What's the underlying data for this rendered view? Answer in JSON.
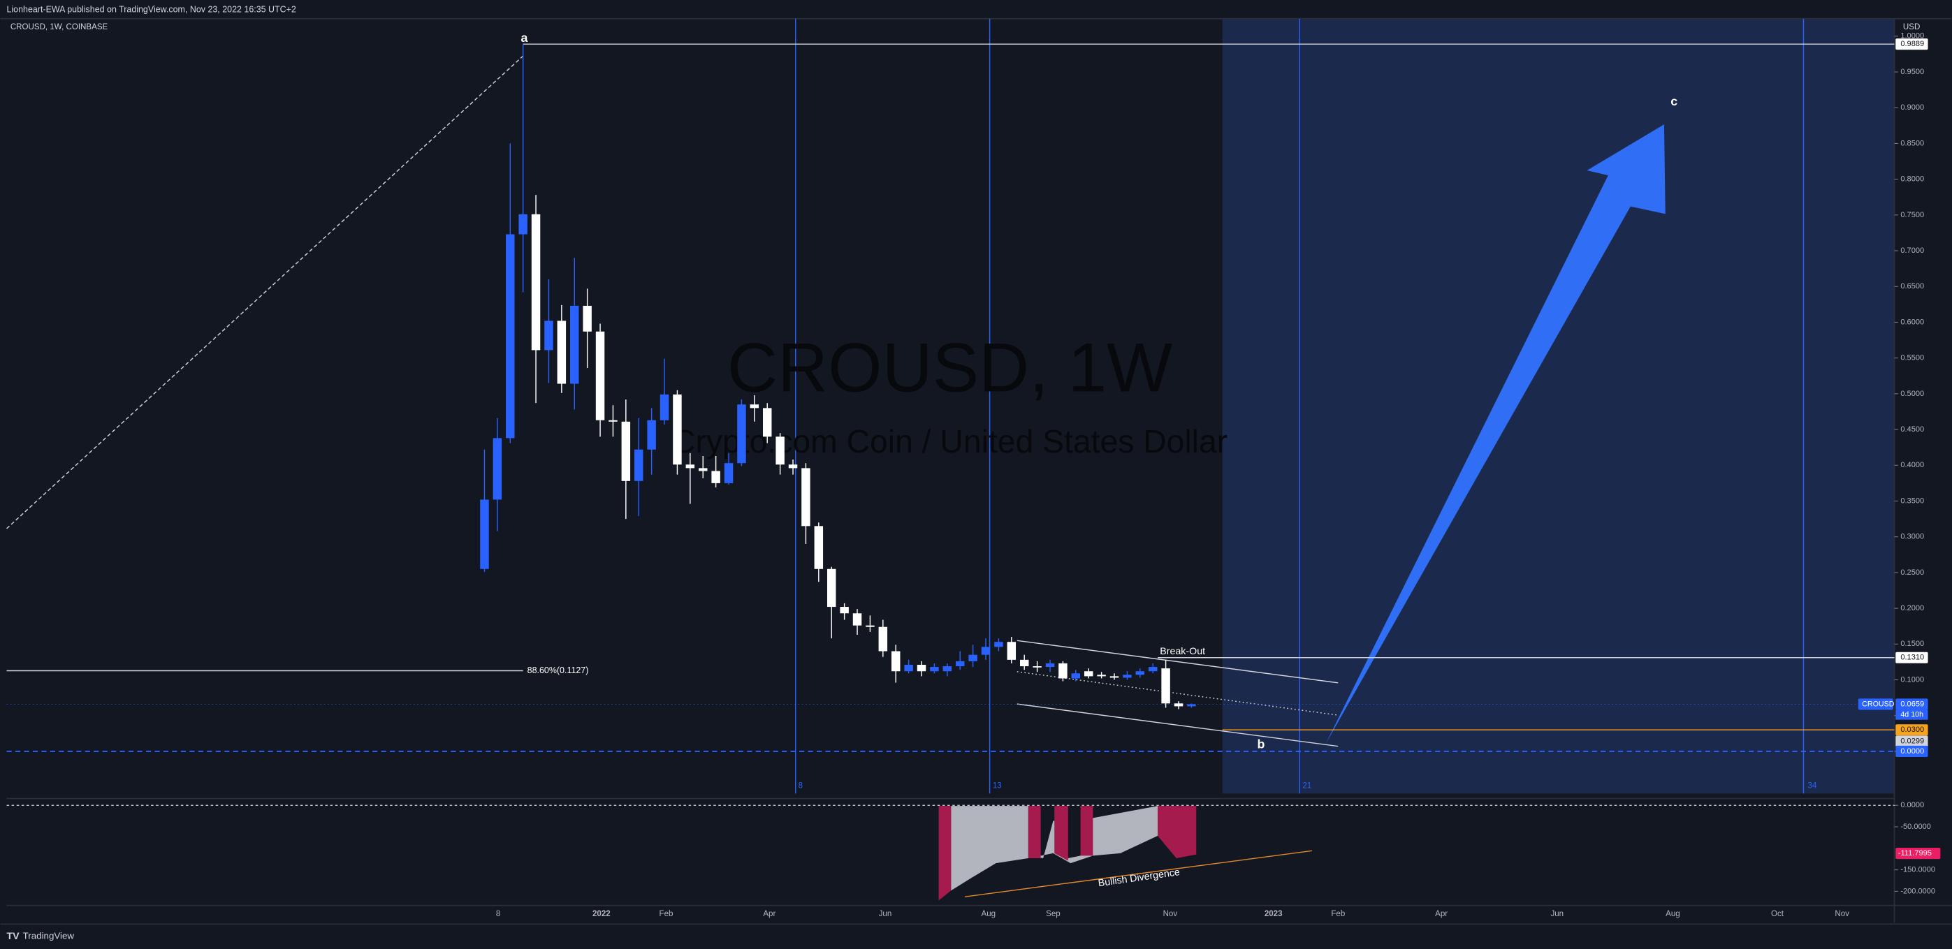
{
  "header": "Lionheart-EWA published on TradingView.com, Nov 23, 2022 16:35 UTC+2",
  "footer": "TradingView",
  "chart_data": {
    "type": "candlestick",
    "symbol": "CROUSD, 1W, COINBASE",
    "watermark": "CROUSD, 1W",
    "watermark_subtitle": "Crypto.com Coin / United States Dollar",
    "currency": "USD",
    "up_color": "#2962ff",
    "down_color": "#ffffff",
    "categories": [
      null,
      null,
      null,
      null,
      null,
      null,
      null,
      null,
      null,
      null,
      null,
      null,
      null,
      null,
      null,
      null,
      null,
      null,
      null,
      null,
      null,
      null,
      null,
      null,
      null,
      null,
      null,
      null,
      null,
      null,
      null,
      null,
      null,
      null,
      null,
      null,
      null,
      null,
      null,
      null,
      null,
      null,
      null,
      null,
      null,
      null,
      null,
      null,
      null,
      null,
      null,
      null,
      null,
      null,
      null,
      null
    ],
    "open": [
      0.255,
      0.352,
      0.438,
      0.723,
      0.751,
      0.561,
      0.602,
      0.514,
      0.623,
      0.587,
      0.463,
      0.461,
      0.378,
      0.422,
      0.463,
      0.499,
      0.401,
      0.396,
      0.392,
      0.375,
      0.403,
      0.485,
      0.48,
      0.44,
      0.401,
      0.396,
      0.315,
      0.255,
      0.202,
      0.193,
      0.176,
      0.174,
      0.14,
      0.112,
      0.121,
      0.112,
      0.112,
      0.119,
      0.126,
      0.135,
      0.146,
      0.153,
      0.128,
      0.119,
      0.118,
      0.123,
      0.102,
      0.112,
      0.107,
      0.105,
      0.103,
      0.107,
      0.112,
      0.116,
      0.067,
      0.063
    ],
    "high": [
      0.422,
      0.466,
      0.85,
      0.9889,
      0.778,
      0.66,
      0.624,
      0.69,
      0.647,
      0.598,
      0.484,
      0.492,
      0.466,
      0.48,
      0.549,
      0.505,
      0.417,
      0.413,
      0.413,
      0.417,
      0.492,
      0.498,
      0.487,
      0.445,
      0.408,
      0.403,
      0.32,
      0.258,
      0.207,
      0.199,
      0.19,
      0.184,
      0.149,
      0.128,
      0.126,
      0.123,
      0.123,
      0.14,
      0.149,
      0.158,
      0.158,
      0.16,
      0.135,
      0.126,
      0.128,
      0.126,
      0.114,
      0.116,
      0.111,
      0.109,
      0.112,
      0.116,
      0.123,
      0.128,
      0.07,
      0.067
    ],
    "low": [
      0.251,
      0.308,
      0.431,
      0.642,
      0.487,
      0.515,
      0.501,
      0.478,
      0.536,
      0.44,
      0.44,
      0.325,
      0.329,
      0.387,
      0.457,
      0.387,
      0.346,
      0.382,
      0.369,
      0.373,
      0.399,
      0.461,
      0.431,
      0.387,
      0.387,
      0.29,
      0.237,
      0.158,
      0.184,
      0.163,
      0.167,
      0.132,
      0.096,
      0.109,
      0.105,
      0.109,
      0.105,
      0.114,
      0.118,
      0.128,
      0.14,
      0.123,
      0.114,
      0.111,
      0.111,
      0.098,
      0.098,
      0.102,
      0.102,
      0.1,
      0.1,
      0.103,
      0.109,
      0.061,
      0.059,
      0.061
    ],
    "close": [
      0.352,
      0.438,
      0.723,
      0.751,
      0.561,
      0.602,
      0.514,
      0.623,
      0.587,
      0.463,
      0.461,
      0.378,
      0.422,
      0.463,
      0.499,
      0.401,
      0.396,
      0.392,
      0.375,
      0.403,
      0.485,
      0.48,
      0.44,
      0.401,
      0.396,
      0.315,
      0.255,
      0.202,
      0.193,
      0.176,
      0.174,
      0.14,
      0.112,
      0.121,
      0.112,
      0.118,
      0.119,
      0.126,
      0.135,
      0.146,
      0.153,
      0.128,
      0.119,
      0.118,
      0.123,
      0.102,
      0.109,
      0.105,
      0.105,
      0.103,
      0.107,
      0.112,
      0.118,
      0.067,
      0.063,
      0.0659
    ],
    "ylim": [
      -0.059,
      1.0245
    ],
    "yticks": [
      {
        "value": 0,
        "label": "0.0000"
      },
      {
        "value": 0.05,
        "label": "0.0500"
      },
      {
        "value": 0.1,
        "label": "0.1000"
      },
      {
        "value": 0.15,
        "label": "0.1500"
      },
      {
        "value": 0.2,
        "label": "0.2000"
      },
      {
        "value": 0.25,
        "label": "0.2500"
      },
      {
        "value": 0.3,
        "label": "0.3000"
      },
      {
        "value": 0.35,
        "label": "0.3500"
      },
      {
        "value": 0.4,
        "label": "0.4000"
      },
      {
        "value": 0.45,
        "label": "0.4500"
      },
      {
        "value": 0.5,
        "label": "0.5000"
      },
      {
        "value": 0.55,
        "label": "0.5500"
      },
      {
        "value": 0.6,
        "label": "0.6000"
      },
      {
        "value": 0.65,
        "label": "0.6500"
      },
      {
        "value": 0.7,
        "label": "0.7000"
      },
      {
        "value": 0.75,
        "label": "0.7500"
      },
      {
        "value": 0.8,
        "label": "0.8000"
      },
      {
        "value": 0.85,
        "label": "0.8500"
      },
      {
        "value": 0.9,
        "label": "0.9000"
      },
      {
        "value": 0.95,
        "label": "0.9500"
      },
      {
        "value": 1,
        "label": "1.0000"
      }
    ],
    "xtick_labels": [
      "8",
      "2022",
      "Feb",
      "Apr",
      "Jun",
      "Aug",
      "Sep",
      "Nov",
      "2023",
      "Feb",
      "Apr",
      "Jun",
      "Aug",
      "Oct",
      "Nov"
    ],
    "fib_time_labels": [
      "8",
      "13",
      "21",
      "34"
    ],
    "price_tags": [
      {
        "value": 0.9889,
        "label": "0.9889"
      },
      {
        "value": 0.131,
        "label": "0.1310"
      },
      {
        "value": 0.0659,
        "label": "0.0659"
      },
      {
        "value": 0.03,
        "label": "0.0300"
      },
      {
        "value": 0.0299,
        "label": "0.0299"
      },
      {
        "value": 0,
        "label": "0.0000"
      }
    ],
    "last_price_symbol": "CROUSD",
    "countdown": "4d 10h",
    "fib_level": {
      "value": 0.1127,
      "label": "88.60%(0.1127)"
    },
    "annotations": [
      "a",
      "b",
      "c",
      "Break-Out"
    ],
    "indicator": {
      "ylim": [
        -230,
        10
      ],
      "yticks": [
        {
          "value": 0,
          "label": "0.0000"
        },
        {
          "value": -50,
          "label": "-50.0000"
        },
        {
          "value": -150,
          "label": "-150.0000"
        },
        {
          "value": -200,
          "label": "-200.0000"
        }
      ],
      "last_value": {
        "value": -111.7995,
        "label": "-111.7995"
      },
      "annotation": "Bullish Divergence"
    }
  }
}
